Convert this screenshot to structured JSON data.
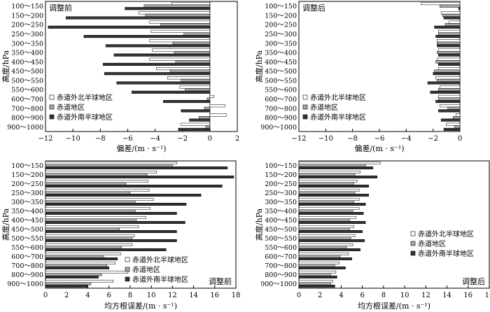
{
  "colors": {
    "north": "#ffffff",
    "equator": "#a6a6a6",
    "south": "#333333",
    "stroke": "#000000"
  },
  "chart_data": [
    {
      "id": "bias-before",
      "type": "bar",
      "orientation": "horizontal",
      "panel_label": "调整前",
      "xlabel": "偏差/(m · s⁻¹)",
      "ylabel": "高度/hPa",
      "xlim": [
        -12,
        2
      ],
      "xticks": [
        -12,
        -10,
        -8,
        -6,
        -4,
        -2,
        0,
        2
      ],
      "xtick_labels": [
        "−12",
        "−10",
        "−8",
        "−6",
        "−4",
        "−2",
        "0",
        "2"
      ],
      "label_pos": "top-left",
      "legend_pos": "bottom-left",
      "categories": [
        "100～150",
        "150～200",
        "200～250",
        "250～300",
        "300～350",
        "350～400",
        "400～450",
        "450～500",
        "500～550",
        "550～600",
        "600～700",
        "700～800",
        "800～900",
        "900～1000"
      ],
      "series": [
        {
          "name": "赤道外北半球地区",
          "key": "north",
          "values": [
            -2.8,
            -5.2,
            -4.4,
            -4.3,
            -4.4,
            -4.2,
            -4.4,
            -3.9,
            -3.1,
            -2.2,
            0.3,
            1.1,
            1.2,
            -2.1
          ]
        },
        {
          "name": "赤道地区",
          "key": "equator",
          "values": [
            -4.8,
            -4.7,
            -3.6,
            -1.9,
            -2.7,
            -2.6,
            -2.5,
            -2.9,
            -2.1,
            -1.8,
            -0.2,
            -0.4,
            -0.8,
            -0.3
          ]
        },
        {
          "name": "赤道外南半球地区",
          "key": "south",
          "values": [
            -6.2,
            -10.5,
            -11.8,
            -9.2,
            -7.6,
            -7.0,
            -7.8,
            -7.7,
            -6.8,
            -5.7,
            -3.4,
            -2.1,
            -1.5,
            -2.3
          ]
        }
      ]
    },
    {
      "id": "bias-after",
      "type": "bar",
      "orientation": "horizontal",
      "panel_label": "调整后",
      "xlabel": "偏差/(m · s⁻¹)",
      "ylabel": "高度/hPa",
      "xlim": [
        -12,
        0
      ],
      "xticks": [
        -12,
        -10,
        -8,
        -6,
        -4,
        -2,
        0
      ],
      "xtick_labels": [
        "−12",
        "−10",
        "−8",
        "−6",
        "−4",
        "−2",
        "0"
      ],
      "label_pos": "top-left",
      "legend_pos": "bottom-left",
      "categories": [
        "100～150",
        "150～200",
        "200～250",
        "250～300",
        "300～350",
        "350～400",
        "400～450",
        "450～500",
        "500～550",
        "550～600",
        "600～700",
        "700～800",
        "800～900",
        "900～1000"
      ],
      "series": [
        {
          "name": "赤道外北半球地区",
          "key": "north",
          "values": [
            -2.9,
            -1.4,
            -0.8,
            -1.6,
            -1.7,
            -1.6,
            -1.7,
            -1.6,
            -1.8,
            -1.5,
            -1.6,
            -1.5,
            -0.3,
            -1.0
          ]
        },
        {
          "name": "赤道地区",
          "key": "equator",
          "values": [
            -1.5,
            -1.3,
            -1.1,
            -1.6,
            -1.7,
            -1.7,
            -1.8,
            -1.9,
            -1.7,
            -1.6,
            -1.6,
            -0.9,
            -0.5,
            -0.4
          ]
        },
        {
          "name": "赤道外南半球地区",
          "key": "south",
          "values": [
            -0.1,
            -1.2,
            -1.9,
            -1.8,
            -1.7,
            -1.6,
            -1.6,
            -2.0,
            -2.4,
            -2.2,
            -1.8,
            -1.6,
            -1.4,
            -1.2
          ]
        }
      ]
    },
    {
      "id": "rmse-before",
      "type": "bar",
      "orientation": "horizontal",
      "panel_label": "调整前",
      "xlabel": "均方根误差/(m · s⁻¹)",
      "ylabel": "高度/hPa",
      "xlim": [
        0,
        18
      ],
      "xticks": [
        0,
        2,
        4,
        6,
        8,
        10,
        12,
        14,
        16,
        18
      ],
      "xtick_labels": [
        "0",
        "2",
        "4",
        "6",
        "8",
        "10",
        "12",
        "14",
        "16",
        "18"
      ],
      "label_pos": "bottom-right",
      "legend_pos": "bottom-right",
      "categories": [
        "100～150",
        "150～200",
        "200～250",
        "250～300",
        "300～350",
        "350～400",
        "400～450",
        "450～500",
        "500～550",
        "550～600",
        "600～700",
        "700～800",
        "800～900",
        "900～1000"
      ],
      "series": [
        {
          "name": "赤道外北半球地区",
          "key": "north",
          "values": [
            12.4,
            10.5,
            9.7,
            9.8,
            10.2,
            9.9,
            9.5,
            8.8,
            8.4,
            8.2,
            7.1,
            6.6,
            7.8,
            6.4
          ]
        },
        {
          "name": "赤道地区",
          "key": "equator",
          "values": [
            12.0,
            9.6,
            7.6,
            8.0,
            8.5,
            8.5,
            8.6,
            7.0,
            8.2,
            7.2,
            5.5,
            5.8,
            5.3,
            4.3
          ]
        },
        {
          "name": "赤道外南半球地区",
          "key": "south",
          "values": [
            17.2,
            17.8,
            16.7,
            14.7,
            13.3,
            12.4,
            13.2,
            12.4,
            12.4,
            11.4,
            6.8,
            6.0,
            5.0,
            4.0
          ]
        }
      ]
    },
    {
      "id": "rmse-after",
      "type": "bar",
      "orientation": "horizontal",
      "panel_label": "调整后",
      "xlabel": "均方根误差/(m · s⁻¹)",
      "ylabel": "高度/hPa",
      "xlim": [
        0,
        18
      ],
      "xticks": [
        0,
        2,
        4,
        6,
        8,
        10,
        12,
        14,
        16,
        18
      ],
      "xtick_labels": [
        "0",
        "2",
        "4",
        "6",
        "8",
        "10",
        "12",
        "14",
        "16",
        "18"
      ],
      "label_pos": "bottom-right",
      "legend_pos": "middle-right",
      "categories": [
        "100～150",
        "150～200",
        "200～250",
        "250～300",
        "300～350",
        "350～400",
        "400～450",
        "450～500",
        "500～550",
        "550～600",
        "600～700",
        "700～800",
        "800～900",
        "900～1000"
      ],
      "series": [
        {
          "name": "赤道外北半球地区",
          "key": "north",
          "values": [
            7.7,
            5.8,
            5.5,
            5.7,
            5.7,
            5.7,
            5.4,
            5.2,
            5.3,
            5.1,
            4.7,
            3.8,
            3.5,
            3.2
          ]
        },
        {
          "name": "赤道地区",
          "key": "equator",
          "values": [
            6.3,
            5.3,
            5.2,
            5.3,
            5.2,
            5.1,
            4.8,
            4.8,
            4.9,
            4.5,
            3.9,
            3.4,
            3.0,
            3.0
          ]
        },
        {
          "name": "赤道外南半球地区",
          "key": "south",
          "values": [
            7.0,
            7.4,
            6.6,
            6.6,
            6.3,
            6.1,
            6.3,
            6.0,
            6.2,
            5.8,
            5.0,
            4.4,
            3.6,
            3.4
          ]
        }
      ]
    }
  ]
}
